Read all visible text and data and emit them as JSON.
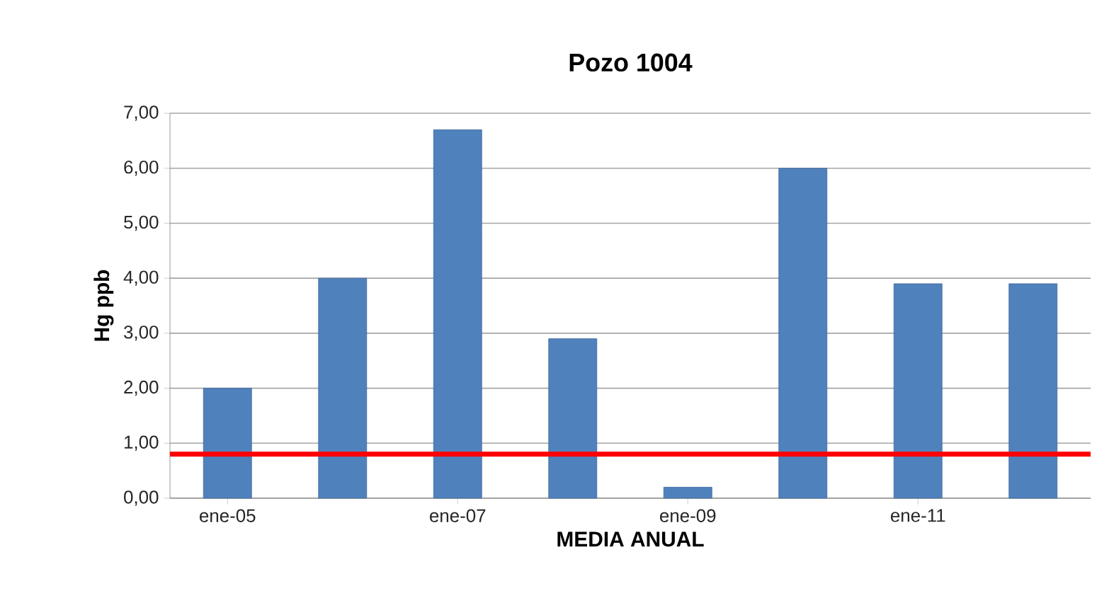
{
  "chart_data": {
    "type": "bar",
    "title": "Pozo 1004",
    "xlabel": "MEDIA ANUAL",
    "ylabel": "Hg ppb",
    "categories": [
      "ene-05",
      null,
      "ene-07",
      null,
      "ene-09",
      null,
      "ene-11",
      null
    ],
    "values": [
      2.0,
      4.0,
      6.7,
      2.9,
      0.2,
      6.0,
      3.9,
      3.9
    ],
    "color": "#4f81bd",
    "ylim": [
      0,
      7
    ],
    "yticks": [
      {
        "value": 0,
        "label": "0,00"
      },
      {
        "value": 1,
        "label": "1,00"
      },
      {
        "value": 2,
        "label": "2,00"
      },
      {
        "value": 3,
        "label": "3,00"
      },
      {
        "value": 4,
        "label": "4,00"
      },
      {
        "value": 5,
        "label": "5,00"
      },
      {
        "value": 6,
        "label": "6,00"
      },
      {
        "value": 7,
        "label": "7,00"
      }
    ],
    "grid": "y",
    "ref_lines": [
      {
        "axis": "y",
        "value": 0.8,
        "color": "#ff0000"
      }
    ]
  }
}
